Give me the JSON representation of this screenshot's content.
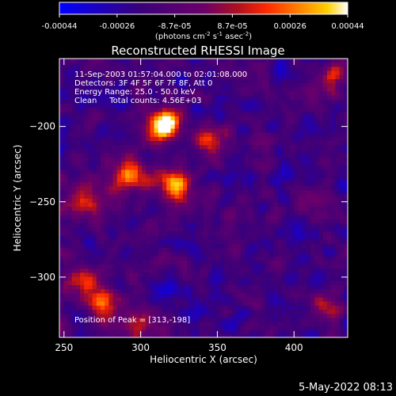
{
  "chart_data": {
    "type": "heatmap",
    "title": "Reconstructed RHESSI Image",
    "xlabel": "Heliocentric X (arcsec)",
    "ylabel": "Heliocentric Y (arcsec)",
    "x_ticks": [
      250,
      300,
      350,
      400
    ],
    "y_ticks": [
      -200,
      -250,
      -300
    ],
    "xlim": [
      247,
      435
    ],
    "ylim": [
      -340,
      -155
    ],
    "colorbar": {
      "ticks": [
        "-0.00044",
        "-0.00026",
        "-8.7e-05",
        "8.7e-05",
        "0.00026",
        "0.00044"
      ],
      "range": [
        -0.00044,
        0.00044
      ],
      "units_html": "(photons cm<tspan dy='-4' font-size='7'>-2</tspan><tspan dy='4'> s</tspan><tspan dy='-4' font-size='7'>-1</tspan><tspan dy='4'> asec</tspan><tspan dy='-4' font-size='7'>-2</tspan><tspan dy='4'>)</tspan>"
    },
    "annotations": [
      "11-Sep-2003 01:57:04.000 to 02:01:08.000",
      "Detectors: 3F 4F 5F 6F 7F 8F, Att 0",
      "Energy Range: 25.0 - 50.0 keV",
      "Clean     Total counts: 4.56E+03"
    ],
    "peak_label": "Position of Peak = [313,-198]",
    "peak": [
      313,
      -198
    ],
    "bright_sources": [
      {
        "x": 313,
        "y": -198,
        "level": 1.0
      },
      {
        "x": 290,
        "y": -230,
        "level": 0.65
      },
      {
        "x": 320,
        "y": -238,
        "level": 0.8
      },
      {
        "x": 262,
        "y": -250,
        "level": 0.55
      },
      {
        "x": 260,
        "y": -300,
        "level": 0.5
      },
      {
        "x": 275,
        "y": -318,
        "level": 0.55
      },
      {
        "x": 345,
        "y": -208,
        "level": 0.45
      },
      {
        "x": 425,
        "y": -165,
        "level": 0.4
      },
      {
        "x": 300,
        "y": -330,
        "level": 0.35
      },
      {
        "x": 420,
        "y": -320,
        "level": 0.35
      }
    ],
    "grid": false
  },
  "footer": {
    "timestamp": "5-May-2022 08:13"
  }
}
